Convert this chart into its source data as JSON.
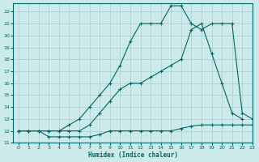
{
  "xlabel": "Humidex (Indice chaleur)",
  "bg_color": "#cceaea",
  "grid_color": "#aacccc",
  "line_color": "#006666",
  "xlim": [
    -0.5,
    23
  ],
  "ylim": [
    11,
    22.7
  ],
  "x_ticks": [
    0,
    1,
    2,
    3,
    4,
    5,
    6,
    7,
    8,
    9,
    10,
    11,
    12,
    13,
    14,
    15,
    16,
    17,
    18,
    19,
    20,
    21,
    22,
    23
  ],
  "y_ticks": [
    11,
    12,
    13,
    14,
    15,
    16,
    17,
    18,
    19,
    20,
    21,
    22
  ],
  "line1_x": [
    0,
    1,
    2,
    3,
    4,
    5,
    6,
    7,
    8,
    9,
    10,
    11,
    12,
    13,
    14,
    15,
    16,
    17,
    18,
    19,
    20,
    21,
    22,
    23
  ],
  "line1_y": [
    12.0,
    12.0,
    12.0,
    11.5,
    11.5,
    11.5,
    11.5,
    11.5,
    11.7,
    12.0,
    12.0,
    12.0,
    12.0,
    12.0,
    12.0,
    12.0,
    12.2,
    12.4,
    12.5,
    12.5,
    12.5,
    12.5,
    12.5,
    12.5
  ],
  "line2_x": [
    0,
    1,
    2,
    3,
    4,
    5,
    6,
    7,
    8,
    9,
    10,
    11,
    12,
    13,
    14,
    15,
    16,
    17,
    18,
    19,
    20,
    21,
    22
  ],
  "line2_y": [
    12.0,
    12.0,
    12.0,
    12.0,
    12.0,
    12.0,
    12.0,
    12.5,
    13.5,
    14.5,
    15.5,
    16.0,
    16.0,
    16.5,
    17.0,
    17.5,
    18.0,
    20.5,
    21.0,
    18.5,
    16.0,
    13.5,
    13.0
  ],
  "line3_x": [
    0,
    1,
    2,
    3,
    4,
    5,
    6,
    7,
    8,
    9,
    10,
    11,
    12,
    13,
    14,
    15,
    16,
    17,
    18,
    19,
    20,
    21,
    22,
    23
  ],
  "line3_y": [
    12.0,
    12.0,
    12.0,
    12.0,
    12.0,
    12.5,
    13.0,
    14.0,
    15.0,
    16.0,
    17.5,
    19.5,
    21.0,
    21.0,
    21.0,
    22.5,
    22.5,
    21.0,
    20.5,
    21.0,
    21.0,
    21.0,
    13.5,
    13.0
  ]
}
